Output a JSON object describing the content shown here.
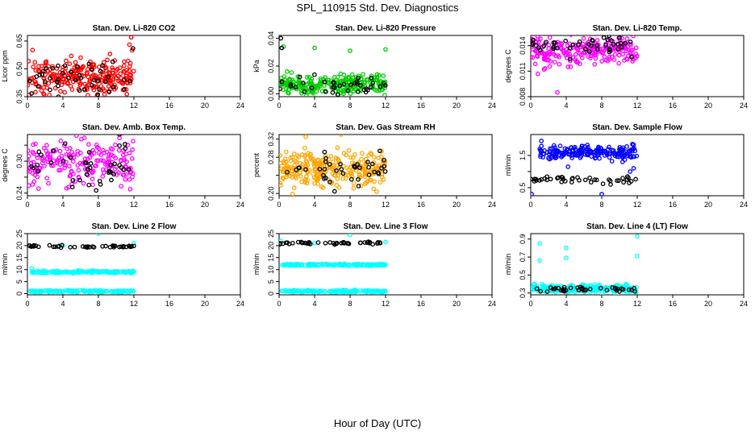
{
  "page": {
    "title": "SPL_110915  Std. Dev. Diagnostics",
    "xlabel": "Hour of Day (UTC)"
  },
  "chart_data": [
    {
      "type": "scatter",
      "title": "Stan. Dev. Li-820 CO2",
      "ylabel": "Licor ppm",
      "xlim": [
        0,
        24
      ],
      "xticks": [
        0,
        4,
        8,
        12,
        16,
        20,
        24
      ],
      "ylim": [
        0.35,
        0.68
      ],
      "yticks": [
        0.35,
        0.5,
        0.65
      ],
      "ytick_labels": [
        "0.35",
        "0.50",
        "0.65"
      ],
      "series": [
        {
          "name": "primary",
          "color": "#ff0000",
          "center": 0.45,
          "spread": 0.05,
          "count": 240,
          "x_range": [
            0,
            12
          ],
          "outliers": [
            [
              11.7,
              0.67
            ],
            [
              11.5,
              0.63
            ],
            [
              11.8,
              0.6
            ],
            [
              0.2,
              0.36
            ],
            [
              6.0,
              0.56
            ],
            [
              9.3,
              0.58
            ]
          ]
        },
        {
          "name": "secondary",
          "color": "#000000",
          "center": 0.45,
          "spread": 0.04,
          "count": 45,
          "x_range": [
            0,
            12
          ],
          "outliers": [
            [
              11.9,
              0.61
            ]
          ]
        }
      ]
    },
    {
      "type": "scatter",
      "title": "Stan. Dev. Li-820 Pressure",
      "ylabel": "kPa",
      "xlim": [
        0,
        24
      ],
      "xticks": [
        0,
        4,
        8,
        12,
        16,
        20,
        24
      ],
      "ylim": [
        -0.002,
        0.042
      ],
      "yticks": [
        0.0,
        0.02,
        0.04
      ],
      "ytick_labels": [
        "0.00",
        "0.02",
        "0.04"
      ],
      "series": [
        {
          "name": "primary",
          "color": "#00cc00",
          "center": 0.007,
          "spread": 0.0035,
          "count": 240,
          "x_range": [
            0,
            12
          ],
          "outliers": [
            [
              0.5,
              0.034
            ],
            [
              4.0,
              0.033
            ],
            [
              8.0,
              0.031
            ],
            [
              12.0,
              0.032
            ]
          ]
        },
        {
          "name": "secondary",
          "color": "#000000",
          "center": 0.006,
          "spread": 0.003,
          "count": 40,
          "x_range": [
            0,
            12
          ],
          "outliers": [
            [
              0.2,
              0.04
            ],
            [
              0.3,
              0.033
            ]
          ]
        }
      ]
    },
    {
      "type": "scatter",
      "title": "Stan. Dev. Li-820 Temp.",
      "ylabel": "degrees C",
      "xlim": [
        0,
        24
      ],
      "xticks": [
        0,
        4,
        8,
        12,
        16,
        20,
        24
      ],
      "ylim": [
        0.008,
        0.0152
      ],
      "yticks": [
        0.008,
        0.011,
        0.014
      ],
      "ytick_labels": [
        "0.008",
        "0.011",
        "0.014"
      ],
      "series": [
        {
          "name": "primary",
          "color": "#ff00ff",
          "center": 0.0135,
          "spread": 0.0009,
          "count": 230,
          "x_range": [
            0,
            12
          ],
          "outliers": [
            [
              3.0,
              0.0085
            ],
            [
              1.5,
              0.0112
            ]
          ]
        },
        {
          "name": "secondary",
          "color": "#000000",
          "center": 0.014,
          "spread": 0.0006,
          "count": 45,
          "x_range": [
            0,
            12
          ],
          "outliers": []
        }
      ]
    },
    {
      "type": "scatter",
      "title": "Stan. Dev. Amb. Box Temp.",
      "ylabel": "degrees C",
      "xlim": [
        0,
        24
      ],
      "xticks": [
        0,
        4,
        8,
        12,
        16,
        20,
        24
      ],
      "ylim": [
        0.235,
        0.35
      ],
      "yticks": [
        0.24,
        0.27,
        0.3,
        0.33
      ],
      "ytick_labels": [
        "0.24",
        "",
        "0.30",
        ""
      ],
      "series": [
        {
          "name": "primary",
          "color": "#ff00ff",
          "center": 0.295,
          "spread": 0.022,
          "count": 200,
          "x_range": [
            0,
            12
          ],
          "outliers": []
        },
        {
          "name": "secondary",
          "color": "#000000",
          "center": 0.295,
          "spread": 0.022,
          "count": 40,
          "x_range": [
            0,
            12
          ],
          "outliers": []
        }
      ]
    },
    {
      "type": "scatter",
      "title": "Stan. Dev. Gas Stream RH",
      "ylabel": "percent",
      "xlim": [
        0,
        24
      ],
      "xticks": [
        0,
        4,
        8,
        12,
        16,
        20,
        24
      ],
      "ylim": [
        0.195,
        0.33
      ],
      "yticks": [
        0.2,
        0.24,
        0.28,
        0.32
      ],
      "ytick_labels": [
        "0.20",
        "",
        "0.28",
        "0.32"
      ],
      "series": [
        {
          "name": "primary",
          "color": "#ffa500",
          "center": 0.255,
          "spread": 0.02,
          "count": 260,
          "x_range": [
            0,
            12
          ],
          "outliers": [
            [
              3.0,
              0.325
            ],
            [
              7.0,
              0.33
            ]
          ]
        },
        {
          "name": "secondary",
          "color": "#000000",
          "center": 0.26,
          "spread": 0.02,
          "count": 40,
          "x_range": [
            0,
            12
          ],
          "outliers": []
        }
      ]
    },
    {
      "type": "scatter",
      "title": "Stan. Dev. Sample Flow",
      "ylabel": "ml/min",
      "xlim": [
        0,
        24
      ],
      "xticks": [
        0,
        4,
        8,
        12,
        16,
        20,
        24
      ],
      "ylim": [
        0.25,
        2.15
      ],
      "yticks": [
        0.5,
        1.0,
        1.5
      ],
      "ytick_labels": [
        "0.5",
        "",
        "1.5"
      ],
      "series": [
        {
          "name": "primary",
          "color": "#0000ff",
          "center": 1.6,
          "spread": 0.1,
          "count": 200,
          "x_range": [
            1,
            12
          ],
          "outliers": [
            [
              0.1,
              0.3
            ],
            [
              8.0,
              0.3
            ],
            [
              1.2,
              1.95
            ],
            [
              11.2,
              1.0
            ],
            [
              11.6,
              1.1
            ],
            [
              4.2,
              1.15
            ]
          ]
        },
        {
          "name": "secondary",
          "color": "#000000",
          "center": 0.75,
          "spread": 0.05,
          "count": 40,
          "x_range": [
            0,
            12
          ],
          "outliers": [
            [
              9.0,
              0.6
            ],
            [
              0.4,
              0.7
            ]
          ]
        }
      ]
    },
    {
      "type": "scatter",
      "title": "Stan. Dev. Line 2 Flow",
      "ylabel": "ml/min",
      "xlim": [
        0,
        24
      ],
      "xticks": [
        0,
        4,
        8,
        12,
        16,
        20,
        24
      ],
      "ylim": [
        -0.5,
        25
      ],
      "yticks": [
        0,
        5,
        10,
        15,
        20,
        25
      ],
      "ytick_labels": [
        "0",
        "5",
        "10",
        "15",
        "20",
        "25"
      ],
      "series": [
        {
          "name": "primary",
          "color": "#00ffff",
          "center": 9.0,
          "spread": 0.25,
          "count": 150,
          "x_range": [
            0.3,
            12
          ],
          "outliers": [
            [
              8.0,
              25.0
            ],
            [
              12.0,
              21.0
            ],
            [
              0.5,
              10.5
            ],
            [
              4.0,
              20.0
            ]
          ]
        },
        {
          "name": "tertiary",
          "color": "#00ffff",
          "center": 1.0,
          "spread": 0.2,
          "count": 150,
          "x_range": [
            0.3,
            12
          ],
          "outliers": []
        },
        {
          "name": "secondary",
          "color": "#000000",
          "center": 19.7,
          "spread": 0.25,
          "count": 45,
          "x_range": [
            0,
            12
          ],
          "outliers": []
        }
      ]
    },
    {
      "type": "scatter",
      "title": "Stan. Dev. Line 3 Flow",
      "ylabel": "ml/min",
      "xlim": [
        0,
        24
      ],
      "xticks": [
        0,
        4,
        8,
        12,
        16,
        20,
        24
      ],
      "ylim": [
        -0.5,
        25
      ],
      "yticks": [
        0,
        5,
        10,
        15,
        20,
        25
      ],
      "ytick_labels": [
        "0",
        "5",
        "10",
        "15",
        "20",
        "25"
      ],
      "series": [
        {
          "name": "primary",
          "color": "#00ffff",
          "center": 12.0,
          "spread": 0.2,
          "count": 150,
          "x_range": [
            0.3,
            12
          ],
          "outliers": [
            [
              8.0,
              24.5
            ],
            [
              12.0,
              21.5
            ],
            [
              4.0,
              21.0
            ],
            [
              0.2,
              22.0
            ]
          ]
        },
        {
          "name": "tertiary",
          "color": "#00ffff",
          "center": 1.0,
          "spread": 0.2,
          "count": 150,
          "x_range": [
            0.3,
            12
          ],
          "outliers": []
        },
        {
          "name": "secondary",
          "color": "#000000",
          "center": 21.0,
          "spread": 0.25,
          "count": 45,
          "x_range": [
            0,
            12
          ],
          "outliers": []
        }
      ]
    },
    {
      "type": "scatter",
      "title": "Stan. Dev. Line 4 (LT) Flow",
      "ylabel": "ml/min",
      "xlim": [
        0,
        24
      ],
      "xticks": [
        0,
        4,
        8,
        12,
        16,
        20,
        24
      ],
      "ylim": [
        0.28,
        0.96
      ],
      "yticks": [
        0.3,
        0.5,
        0.7,
        0.9
      ],
      "ytick_labels": [
        "0.3",
        "0.5",
        "0.7",
        "0.9"
      ],
      "series": [
        {
          "name": "primary",
          "color": "#00ffff",
          "center": 0.35,
          "spread": 0.02,
          "count": 240,
          "x_range": [
            0,
            12
          ],
          "outliers": [
            [
              1.0,
              0.85
            ],
            [
              1.0,
              0.66
            ],
            [
              4.0,
              0.8
            ],
            [
              4.0,
              0.69
            ],
            [
              12.0,
              0.93
            ],
            [
              12.0,
              0.71
            ]
          ]
        },
        {
          "name": "secondary",
          "color": "#000000",
          "center": 0.34,
          "spread": 0.015,
          "count": 40,
          "x_range": [
            0,
            12
          ],
          "outliers": []
        }
      ]
    }
  ]
}
